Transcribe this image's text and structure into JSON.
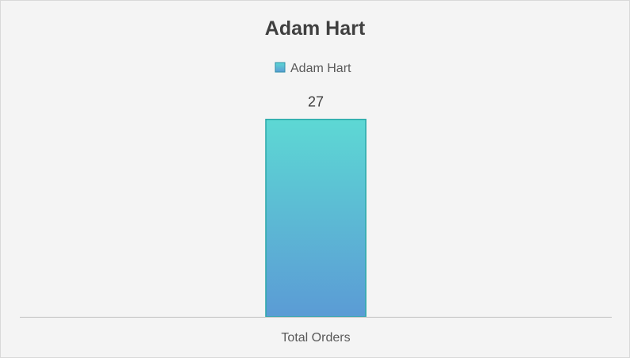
{
  "chart_data": {
    "type": "bar",
    "title": "Adam Hart",
    "categories": [
      "Total Orders"
    ],
    "series": [
      {
        "name": "Adam Hart",
        "values": [
          27
        ],
        "color_top": "#5dd8d4",
        "color_bottom": "#5b9bd5",
        "border": "#2aa8a8"
      }
    ],
    "data_labels": [
      "27"
    ],
    "legend_position": "top",
    "grid": false,
    "ylim": [
      0,
      30
    ]
  },
  "colors": {
    "background": "#f4f4f4",
    "axis_line": "#bfbfbf",
    "text": "#404040"
  }
}
